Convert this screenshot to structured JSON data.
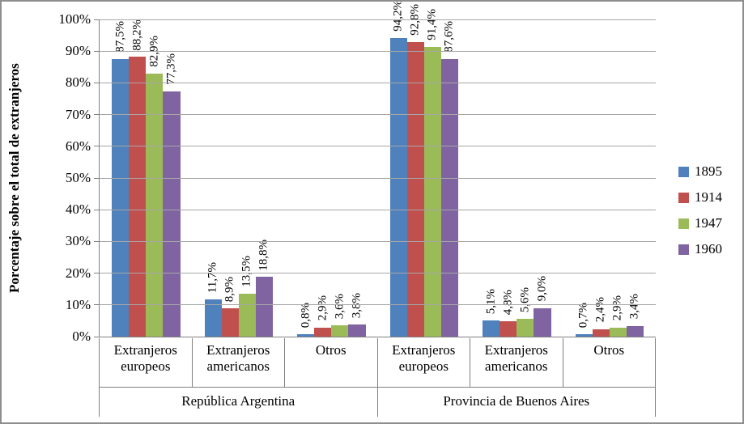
{
  "chart_data": {
    "type": "bar",
    "title": "",
    "ylabel": "Porcentaje sobre el total de extranjeros",
    "xlabel": "",
    "ylim": [
      0,
      100
    ],
    "y_ticks": [
      {
        "label": "100%",
        "value": 100
      },
      {
        "label": "90%",
        "value": 90
      },
      {
        "label": "80%",
        "value": 80
      },
      {
        "label": "70%",
        "value": 70
      },
      {
        "label": "60%",
        "value": 60
      },
      {
        "label": "50%",
        "value": 50
      },
      {
        "label": "40%",
        "value": 40
      },
      {
        "label": "30%",
        "value": 30
      },
      {
        "label": "20%",
        "value": 20
      },
      {
        "label": "10%",
        "value": 10
      },
      {
        "label": "0%",
        "value": 0
      }
    ],
    "grid": true,
    "legend_position": "right",
    "categories": [
      "Extranjeros europeos",
      "Extranjeros americanos",
      "Otros",
      "Extranjeros europeos",
      "Extranjeros americanos",
      "Otros"
    ],
    "group_labels": [
      "República Argentina",
      "Provincia de Buenos Aires"
    ],
    "series": [
      {
        "name": "1895",
        "color": "#4F81BD",
        "values": [
          87.5,
          11.7,
          0.8,
          94.2,
          5.1,
          0.7
        ],
        "labels": [
          "87,5%",
          "11,7%",
          "0,8%",
          "94,2%",
          "5,1%",
          "0,7%"
        ]
      },
      {
        "name": "1914",
        "color": "#C0504D",
        "values": [
          88.2,
          8.9,
          2.9,
          92.8,
          4.8,
          2.4
        ],
        "labels": [
          "88,2%",
          "8,9%",
          "2,9%",
          "92,8%",
          "4,8%",
          "2,4%"
        ]
      },
      {
        "name": "1947",
        "color": "#9BBB59",
        "values": [
          82.9,
          13.5,
          3.6,
          91.4,
          5.6,
          2.9
        ],
        "labels": [
          "82,9%",
          "13,5%",
          "3,6%",
          "91,4%",
          "5,6%",
          "2,9%"
        ]
      },
      {
        "name": "1960",
        "color": "#8064A2",
        "values": [
          77.3,
          18.8,
          3.8,
          87.6,
          9.0,
          3.4
        ],
        "labels": [
          "77,3%",
          "18,8%",
          "3,8%",
          "87,6%",
          "9,0%",
          "3,4%"
        ]
      }
    ],
    "colors": {
      "gridline": "#a6a6a6",
      "axis": "#808080",
      "frame": "#8e8e8e"
    }
  }
}
